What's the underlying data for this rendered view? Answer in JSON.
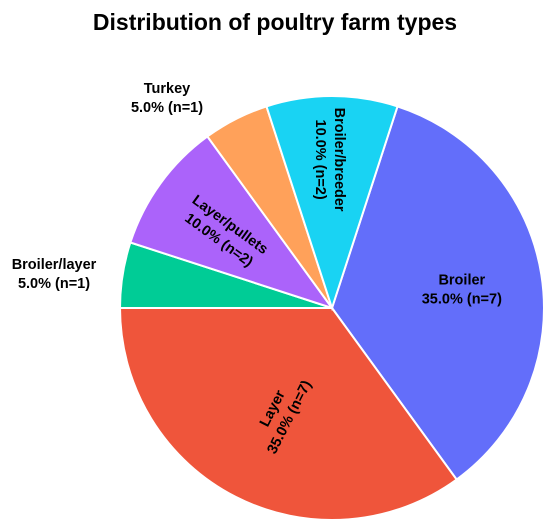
{
  "chart_data": {
    "type": "pie",
    "title": "Distribution of poultry farm types",
    "slices": [
      {
        "label": "Broiler",
        "value": 35.0,
        "count": 7,
        "pct_text": "35.0% (n=7)",
        "color": "#636efa"
      },
      {
        "label": "Layer",
        "value": 35.0,
        "count": 7,
        "pct_text": "35.0% (n=7)",
        "color": "#ef553b"
      },
      {
        "label": "Broiler/layer",
        "value": 5.0,
        "count": 1,
        "pct_text": "5.0% (n=1)",
        "color": "#00cc96"
      },
      {
        "label": "Layer/pullets",
        "value": 10.0,
        "count": 2,
        "pct_text": "10.0% (n=2)",
        "color": "#ab63fa"
      },
      {
        "label": "Turkey",
        "value": 5.0,
        "count": 1,
        "pct_text": "5.0% (n=1)",
        "color": "#ffa15a"
      },
      {
        "label": "Broiler/breeder",
        "value": 10.0,
        "count": 2,
        "pct_text": "10.0% (n=2)",
        "color": "#19d3f3"
      }
    ]
  }
}
